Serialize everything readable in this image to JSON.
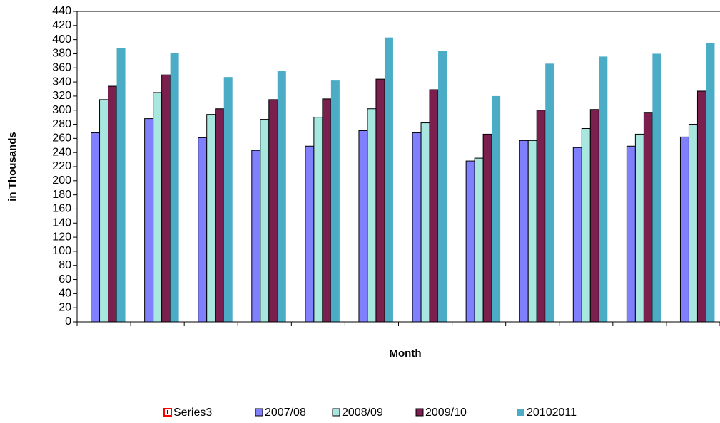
{
  "chart_data": {
    "type": "bar",
    "x_label": "Month",
    "y_label": "in Thousands",
    "categories": [
      null,
      null,
      null,
      null,
      null,
      null,
      null,
      null,
      null,
      null,
      null,
      null
    ],
    "series": [
      {
        "name": "Series3",
        "color": "#ff0000",
        "values": [
          null,
          null,
          null,
          null,
          null,
          null,
          null,
          null,
          null,
          null,
          null,
          null
        ]
      },
      {
        "name": "2007/08",
        "color": "#8080ff",
        "values": [
          268,
          288,
          261,
          243,
          249,
          271,
          268,
          228,
          257,
          247,
          249,
          262
        ]
      },
      {
        "name": "2008/09",
        "color": "#a8e6e0",
        "values": [
          315,
          325,
          294,
          287,
          290,
          302,
          282,
          232,
          257,
          274,
          266,
          280
        ]
      },
      {
        "name": "2009/10",
        "color": "#7b1f4f",
        "values": [
          334,
          350,
          302,
          315,
          316,
          344,
          329,
          266,
          300,
          301,
          297,
          327
        ]
      },
      {
        "name": "20102011",
        "color": "#4bacc6",
        "values": [
          388,
          381,
          347,
          356,
          342,
          403,
          384,
          320,
          366,
          376,
          380,
          395
        ]
      }
    ],
    "ylim": [
      0,
      440
    ],
    "yticks": [
      0,
      20,
      40,
      60,
      80,
      100,
      120,
      140,
      160,
      180,
      200,
      220,
      240,
      260,
      280,
      300,
      320,
      340,
      360,
      380,
      400,
      420,
      440
    ]
  }
}
